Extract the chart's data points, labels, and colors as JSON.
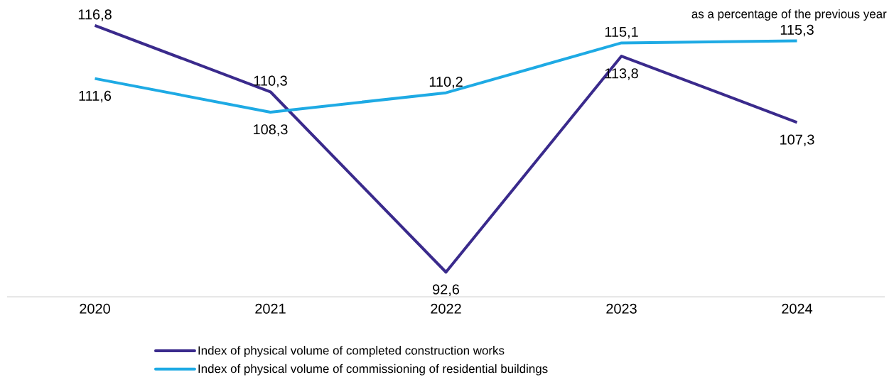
{
  "chart_data": {
    "type": "line",
    "categories": [
      "2020",
      "2021",
      "2022",
      "2023",
      "2024"
    ],
    "series": [
      {
        "name": "Index of physical volume of completed construction works",
        "color": "#3a2a8c",
        "values": [
          116.8,
          110.3,
          92.6,
          113.8,
          107.3
        ],
        "value_labels": [
          "116,8",
          "110,3",
          "92,6",
          "113,8",
          "107,3"
        ]
      },
      {
        "name": "Index of physical volume of commissioning of residential buildings",
        "color": "#1eaae4",
        "values": [
          111.6,
          108.3,
          110.2,
          115.1,
          115.3
        ],
        "value_labels": [
          "111,6",
          "108,3",
          "110,2",
          "115,1",
          "115,3"
        ]
      }
    ],
    "tick_labels": "x",
    "legend": "bottom",
    "marker": "none",
    "line_style": "solid",
    "annotations": [
      "as  a percentage of the previous year"
    ]
  }
}
